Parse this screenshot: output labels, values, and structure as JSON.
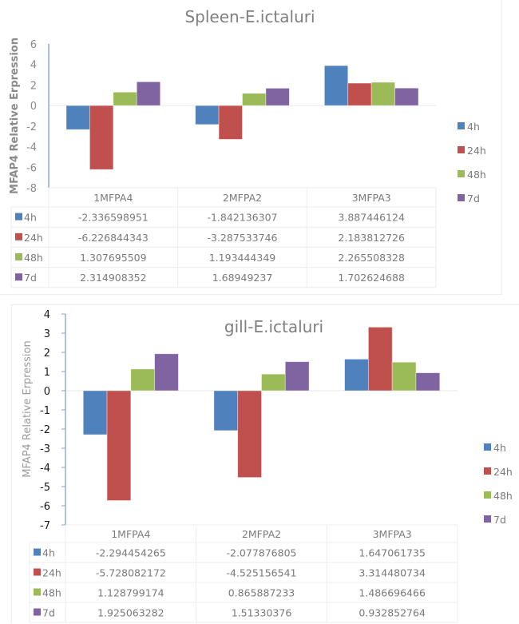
{
  "chart_data": [
    {
      "type": "bar",
      "title": "Spleen-E.ictaluri",
      "xlabel": "",
      "ylabel": "MFAP4 Relative Erpression",
      "ylim": [
        -8,
        6
      ],
      "yticks": [
        6,
        4,
        2,
        0,
        -2,
        -4,
        -6,
        -8
      ],
      "categories": [
        "1MFPA4",
        "2MFPA2",
        "3MFPA3"
      ],
      "legend_position": "right",
      "data_table": true,
      "series": [
        {
          "name": "4h",
          "color": "#4f81bd",
          "values": [
            -2.336598951,
            -1.842136307,
            3.887446124
          ],
          "labels": [
            "-2.336598951",
            "-1.842136307",
            "3.887446124"
          ]
        },
        {
          "name": "24h",
          "color": "#c0504d",
          "values": [
            -6.226844343,
            -3.287533746,
            2.183812726
          ],
          "labels": [
            "-6.226844343",
            "-3.287533746",
            "2.183812726"
          ]
        },
        {
          "name": "48h",
          "color": "#9bbb59",
          "values": [
            1.307695509,
            1.193444349,
            2.265508328
          ],
          "labels": [
            "1.307695509",
            "1.193444349",
            "2.265508328"
          ]
        },
        {
          "name": "7d",
          "color": "#8064a2",
          "values": [
            2.314908352,
            1.68949237,
            1.702624688
          ],
          "labels": [
            "2.314908352",
            "1.68949237",
            "1.702624688"
          ]
        }
      ]
    },
    {
      "type": "bar",
      "title": "gill-E.ictaluri",
      "xlabel": "",
      "ylabel": "MFAP4 Relative Erpression",
      "ylim": [
        -7,
        4
      ],
      "yticks": [
        4,
        3,
        2,
        1,
        0,
        -1,
        -2,
        -3,
        -4,
        -5,
        -6,
        -7
      ],
      "categories": [
        "1MFPA4",
        "2MFPA2",
        "3MFPA3"
      ],
      "legend_position": "right",
      "data_table": true,
      "series": [
        {
          "name": "4h",
          "color": "#4f81bd",
          "values": [
            -2.294454265,
            -2.077876805,
            1.647061735
          ],
          "labels": [
            "-2.294454265",
            "-2.077876805",
            "1.647061735"
          ]
        },
        {
          "name": "24h",
          "color": "#c0504d",
          "values": [
            -5.728082172,
            -4.525156541,
            3.314480734
          ],
          "labels": [
            "-5.728082172",
            "-4.525156541",
            "3.314480734"
          ]
        },
        {
          "name": "48h",
          "color": "#9bbb59",
          "values": [
            1.128799174,
            0.865887233,
            1.486696466
          ],
          "labels": [
            "1.128799174",
            "0.865887233",
            "1.486696466"
          ]
        },
        {
          "name": "7d",
          "color": "#8064a2",
          "values": [
            1.925063282,
            1.51330376,
            0.932852764
          ],
          "labels": [
            "1.925063282",
            "1.51330376",
            "0.932852764"
          ]
        }
      ]
    }
  ]
}
